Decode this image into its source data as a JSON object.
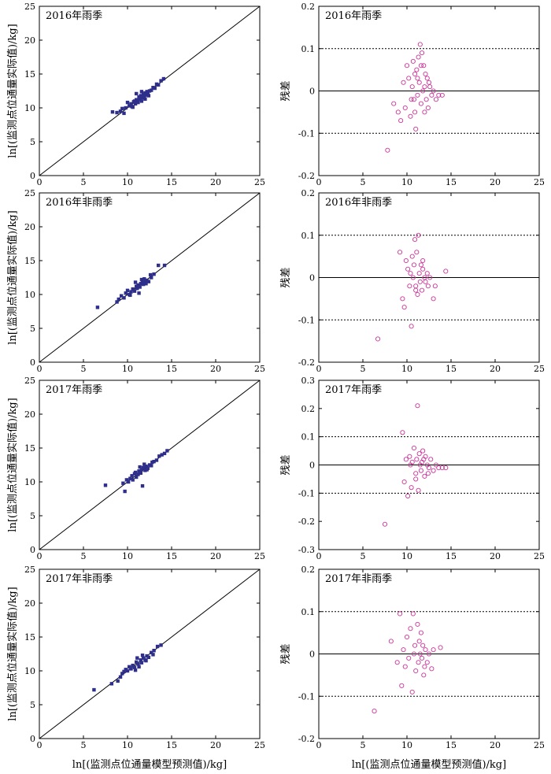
{
  "figure": {
    "xlabel_left": "ln[(监测点位通量模型预测值)/kg]",
    "xlabel_right": "ln[(监测点位通量模型预测值)/kg]",
    "ylabel_left": "ln[(监测点位通量实际值)/kg]",
    "ylabel_right": "残差"
  },
  "colors": {
    "scatter": "#2e2f8a",
    "residual": "#cc3399",
    "line": "#000000"
  },
  "chart_data": [
    {
      "type": "scatter",
      "panel": "left",
      "title": "2016年雨季",
      "xlim": [
        0,
        25
      ],
      "ylim": [
        0,
        25
      ],
      "xticks": [
        "0",
        "5",
        "10",
        "15",
        "20",
        "25"
      ],
      "yticks": [
        "0",
        "5",
        "10",
        "15",
        "20",
        "25"
      ],
      "reference_line": "y=x",
      "points": [
        [
          8.3,
          9.4
        ],
        [
          8.8,
          9.3
        ],
        [
          9.2,
          9.5
        ],
        [
          9.4,
          9.9
        ],
        [
          9.6,
          9.2
        ],
        [
          9.8,
          10.0
        ],
        [
          10.0,
          10.8
        ],
        [
          10.2,
          10.3
        ],
        [
          10.4,
          10.6
        ],
        [
          10.5,
          10.2
        ],
        [
          10.7,
          10.9
        ],
        [
          10.8,
          11.0
        ],
        [
          10.9,
          10.6
        ],
        [
          11.0,
          11.2
        ],
        [
          11.1,
          11.0
        ],
        [
          11.2,
          10.8
        ],
        [
          11.3,
          11.6
        ],
        [
          11.4,
          11.3
        ],
        [
          11.5,
          11.8
        ],
        [
          11.6,
          11.0
        ],
        [
          11.7,
          11.5
        ],
        [
          11.8,
          12.0
        ],
        [
          11.9,
          11.7
        ],
        [
          12.0,
          12.2
        ],
        [
          12.1,
          11.9
        ],
        [
          12.2,
          12.4
        ],
        [
          12.3,
          12.1
        ],
        [
          12.5,
          12.5
        ],
        [
          12.7,
          12.6
        ],
        [
          12.9,
          13.0
        ],
        [
          13.1,
          12.9
        ],
        [
          13.3,
          13.5
        ],
        [
          13.5,
          13.4
        ],
        [
          13.8,
          14.0
        ],
        [
          14.1,
          14.3
        ],
        [
          11.6,
          12.4
        ],
        [
          12.4,
          11.8
        ],
        [
          11.0,
          12.1
        ],
        [
          12.0,
          11.3
        ],
        [
          10.6,
          10.1
        ]
      ]
    },
    {
      "type": "scatter",
      "panel": "right",
      "title": "2016年雨季",
      "ylim": [
        -0.2,
        0.2
      ],
      "yticks": [
        "0.2",
        "0.1",
        "0",
        "-0.1",
        "-0.2"
      ],
      "hlines_dotted": [
        0.1,
        -0.1
      ],
      "hline_solid": 0,
      "points": [
        [
          7.8,
          -0.14
        ],
        [
          8.5,
          -0.03
        ],
        [
          9.0,
          -0.05
        ],
        [
          9.3,
          -0.07
        ],
        [
          9.6,
          0.02
        ],
        [
          9.8,
          -0.04
        ],
        [
          10.0,
          0.06
        ],
        [
          10.2,
          0.03
        ],
        [
          10.4,
          -0.06
        ],
        [
          10.6,
          0.01
        ],
        [
          10.7,
          0.07
        ],
        [
          10.8,
          -0.02
        ],
        [
          10.9,
          0.04
        ],
        [
          11.0,
          -0.09
        ],
        [
          11.1,
          0.05
        ],
        [
          11.2,
          -0.01
        ],
        [
          11.3,
          0.08
        ],
        [
          11.4,
          0.02
        ],
        [
          11.5,
          0.11
        ],
        [
          11.6,
          -0.03
        ],
        [
          11.7,
          0.09
        ],
        [
          11.8,
          0.0
        ],
        [
          11.9,
          0.06
        ],
        [
          12.0,
          -0.05
        ],
        [
          12.1,
          0.04
        ],
        [
          12.2,
          -0.02
        ],
        [
          12.3,
          0.03
        ],
        [
          12.4,
          -0.04
        ],
        [
          12.6,
          0.01
        ],
        [
          12.8,
          -0.01
        ],
        [
          13.0,
          0.0
        ],
        [
          13.3,
          -0.02
        ],
        [
          13.6,
          -0.01
        ],
        [
          14.0,
          -0.01
        ],
        [
          10.5,
          -0.02
        ],
        [
          11.2,
          0.03
        ],
        [
          12.0,
          0.01
        ],
        [
          10.9,
          -0.05
        ],
        [
          11.6,
          0.06
        ],
        [
          12.5,
          0.02
        ]
      ]
    },
    {
      "type": "scatter",
      "panel": "left",
      "title": "2016年非雨季",
      "xlim": [
        0,
        25
      ],
      "ylim": [
        0,
        25
      ],
      "xticks": [
        "0",
        "5",
        "10",
        "15",
        "20",
        "25"
      ],
      "yticks": [
        "0",
        "5",
        "10",
        "15",
        "20",
        "25"
      ],
      "reference_line": "y=x",
      "points": [
        [
          6.6,
          8.1
        ],
        [
          8.8,
          8.9
        ],
        [
          9.0,
          9.3
        ],
        [
          9.3,
          9.8
        ],
        [
          9.6,
          9.5
        ],
        [
          9.8,
          10.2
        ],
        [
          10.0,
          10.6
        ],
        [
          10.2,
          10.0
        ],
        [
          10.4,
          10.4
        ],
        [
          10.6,
          10.8
        ],
        [
          10.8,
          10.5
        ],
        [
          11.0,
          11.2
        ],
        [
          11.1,
          10.9
        ],
        [
          11.2,
          11.4
        ],
        [
          11.4,
          11.1
        ],
        [
          11.5,
          11.6
        ],
        [
          11.7,
          11.8
        ],
        [
          11.8,
          11.5
        ],
        [
          12.0,
          12.0
        ],
        [
          12.2,
          12.1
        ],
        [
          12.4,
          11.9
        ],
        [
          12.7,
          12.5
        ],
        [
          13.0,
          13.0
        ],
        [
          13.5,
          14.3
        ],
        [
          14.2,
          14.3
        ],
        [
          10.9,
          11.8
        ],
        [
          11.6,
          12.2
        ],
        [
          12.1,
          11.6
        ],
        [
          10.3,
          9.9
        ],
        [
          11.3,
          10.2
        ],
        [
          12.6,
          12.9
        ],
        [
          11.9,
          12.3
        ]
      ]
    },
    {
      "type": "scatter",
      "panel": "right",
      "title": "2016年非雨季",
      "ylim": [
        -0.2,
        0.2
      ],
      "yticks": [
        "0.2",
        "0.1",
        "0",
        "-0.1",
        "-0.2"
      ],
      "hlines_dotted": [
        0.1,
        -0.1
      ],
      "hline_solid": 0,
      "points": [
        [
          6.7,
          -0.145
        ],
        [
          9.2,
          0.06
        ],
        [
          9.5,
          -0.05
        ],
        [
          9.7,
          -0.07
        ],
        [
          9.9,
          0.04
        ],
        [
          10.1,
          0.02
        ],
        [
          10.3,
          -0.02
        ],
        [
          10.5,
          -0.115
        ],
        [
          10.6,
          0.05
        ],
        [
          10.7,
          0.0
        ],
        [
          10.8,
          0.03
        ],
        [
          10.9,
          0.09
        ],
        [
          11.0,
          -0.02
        ],
        [
          11.1,
          0.06
        ],
        [
          11.2,
          -0.04
        ],
        [
          11.3,
          0.1
        ],
        [
          11.4,
          0.01
        ],
        [
          11.5,
          -0.01
        ],
        [
          11.6,
          0.03
        ],
        [
          11.7,
          -0.03
        ],
        [
          11.8,
          0.02
        ],
        [
          12.0,
          0.0
        ],
        [
          12.1,
          -0.01
        ],
        [
          12.3,
          0.01
        ],
        [
          12.6,
          0.0
        ],
        [
          13.0,
          -0.05
        ],
        [
          13.2,
          -0.02
        ],
        [
          14.4,
          0.015
        ],
        [
          10.4,
          0.01
        ],
        [
          11.0,
          -0.03
        ],
        [
          11.8,
          0.04
        ],
        [
          12.4,
          -0.02
        ]
      ]
    },
    {
      "type": "scatter",
      "panel": "left",
      "title": "2017年雨季",
      "xlim": [
        0,
        25
      ],
      "ylim": [
        0,
        25
      ],
      "xticks": [
        "0",
        "5",
        "10",
        "15",
        "20",
        "25"
      ],
      "yticks": [
        "0",
        "5",
        "10",
        "15",
        "20",
        "25"
      ],
      "reference_line": "y=x",
      "points": [
        [
          7.5,
          9.5
        ],
        [
          9.5,
          9.8
        ],
        [
          9.7,
          8.6
        ],
        [
          9.9,
          10.3
        ],
        [
          10.1,
          10.0
        ],
        [
          10.3,
          10.5
        ],
        [
          10.5,
          10.9
        ],
        [
          10.6,
          10.3
        ],
        [
          10.8,
          11.2
        ],
        [
          11.0,
          10.7
        ],
        [
          11.2,
          11.1
        ],
        [
          11.3,
          11.6
        ],
        [
          11.4,
          12.2
        ],
        [
          11.5,
          11.3
        ],
        [
          11.6,
          11.8
        ],
        [
          11.7,
          9.4
        ],
        [
          11.8,
          12.1
        ],
        [
          12.0,
          11.7
        ],
        [
          12.1,
          12.3
        ],
        [
          12.3,
          12.0
        ],
        [
          12.5,
          12.5
        ],
        [
          12.7,
          12.4
        ],
        [
          13.0,
          13.0
        ],
        [
          13.3,
          13.2
        ],
        [
          13.6,
          13.8
        ],
        [
          13.9,
          14.0
        ],
        [
          14.2,
          14.2
        ],
        [
          14.5,
          14.6
        ],
        [
          12.2,
          11.8
        ],
        [
          11.9,
          12.6
        ],
        [
          10.9,
          11.4
        ],
        [
          12.8,
          12.9
        ]
      ]
    },
    {
      "type": "scatter",
      "panel": "right",
      "title": "2017年雨季",
      "ylim": [
        -0.3,
        0.3
      ],
      "yticks": [
        "0.3",
        "0.2",
        "0.1",
        "0",
        "-0.1",
        "-0.2",
        "-0.3"
      ],
      "hlines_dotted": [
        0.1,
        -0.1
      ],
      "hline_solid": 0,
      "points": [
        [
          7.5,
          -0.21
        ],
        [
          9.5,
          0.115
        ],
        [
          9.7,
          -0.06
        ],
        [
          9.9,
          0.02
        ],
        [
          10.1,
          -0.11
        ],
        [
          10.3,
          0.03
        ],
        [
          10.5,
          -0.08
        ],
        [
          10.6,
          0.01
        ],
        [
          10.8,
          0.06
        ],
        [
          11.0,
          -0.03
        ],
        [
          11.1,
          0.02
        ],
        [
          11.2,
          0.21
        ],
        [
          11.3,
          -0.09
        ],
        [
          11.4,
          0.04
        ],
        [
          11.5,
          0.0
        ],
        [
          11.6,
          -0.02
        ],
        [
          11.7,
          0.01
        ],
        [
          11.8,
          0.05
        ],
        [
          12.0,
          -0.04
        ],
        [
          12.1,
          0.03
        ],
        [
          12.3,
          0.0
        ],
        [
          12.5,
          -0.01
        ],
        [
          12.7,
          0.02
        ],
        [
          13.0,
          -0.02
        ],
        [
          13.3,
          0.0
        ],
        [
          13.6,
          -0.01
        ],
        [
          14.0,
          -0.01
        ],
        [
          14.4,
          -0.01
        ],
        [
          11.0,
          -0.05
        ],
        [
          11.9,
          0.02
        ],
        [
          12.4,
          -0.03
        ],
        [
          10.4,
          0.0
        ]
      ]
    },
    {
      "type": "scatter",
      "panel": "left",
      "title": "2017年非雨季",
      "xlim": [
        0,
        25
      ],
      "ylim": [
        0,
        25
      ],
      "xticks": [
        "0",
        "5",
        "10",
        "15",
        "20",
        "25"
      ],
      "yticks": [
        "0",
        "5",
        "10",
        "15",
        "20",
        "25"
      ],
      "reference_line": "y=x",
      "points": [
        [
          6.2,
          7.2
        ],
        [
          8.2,
          8.1
        ],
        [
          8.9,
          8.5
        ],
        [
          9.2,
          9.1
        ],
        [
          9.4,
          9.6
        ],
        [
          9.6,
          9.9
        ],
        [
          9.8,
          10.2
        ],
        [
          10.0,
          10.0
        ],
        [
          10.2,
          10.6
        ],
        [
          10.4,
          10.3
        ],
        [
          10.6,
          10.8
        ],
        [
          10.8,
          10.5
        ],
        [
          11.0,
          11.3
        ],
        [
          11.2,
          11.0
        ],
        [
          11.3,
          10.6
        ],
        [
          11.5,
          11.6
        ],
        [
          11.6,
          11.2
        ],
        [
          11.8,
          11.9
        ],
        [
          12.0,
          11.6
        ],
        [
          12.2,
          12.2
        ],
        [
          12.4,
          12.0
        ],
        [
          12.7,
          12.7
        ],
        [
          13.0,
          13.0
        ],
        [
          13.4,
          13.6
        ],
        [
          13.8,
          13.8
        ],
        [
          11.1,
          11.9
        ],
        [
          12.1,
          11.5
        ],
        [
          10.9,
          10.1
        ],
        [
          11.7,
          12.3
        ],
        [
          12.9,
          12.4
        ]
      ]
    },
    {
      "type": "scatter",
      "panel": "right",
      "title": "2017年非雨季",
      "ylim": [
        -0.2,
        0.2
      ],
      "yticks": [
        "0.2",
        "0.1",
        "0",
        "-0.1",
        "-0.2"
      ],
      "hlines_dotted": [
        0.1,
        -0.1
      ],
      "hline_solid": 0,
      "points": [
        [
          6.3,
          -0.135
        ],
        [
          8.2,
          0.03
        ],
        [
          8.9,
          -0.02
        ],
        [
          9.2,
          0.095
        ],
        [
          9.4,
          -0.075
        ],
        [
          9.6,
          0.01
        ],
        [
          9.8,
          -0.03
        ],
        [
          10.0,
          0.04
        ],
        [
          10.2,
          -0.01
        ],
        [
          10.4,
          0.06
        ],
        [
          10.6,
          -0.09
        ],
        [
          10.7,
          0.095
        ],
        [
          10.8,
          0.0
        ],
        [
          11.0,
          -0.04
        ],
        [
          11.2,
          0.07
        ],
        [
          11.3,
          -0.02
        ],
        [
          11.4,
          0.03
        ],
        [
          11.5,
          0.0
        ],
        [
          11.6,
          0.05
        ],
        [
          11.7,
          -0.01
        ],
        [
          11.8,
          0.02
        ],
        [
          12.0,
          -0.03
        ],
        [
          12.1,
          0.01
        ],
        [
          12.3,
          -0.02
        ],
        [
          12.5,
          0.0
        ],
        [
          12.8,
          -0.035
        ],
        [
          13.0,
          0.01
        ],
        [
          13.8,
          0.015
        ],
        [
          10.9,
          0.02
        ],
        [
          11.9,
          -0.05
        ]
      ]
    }
  ]
}
